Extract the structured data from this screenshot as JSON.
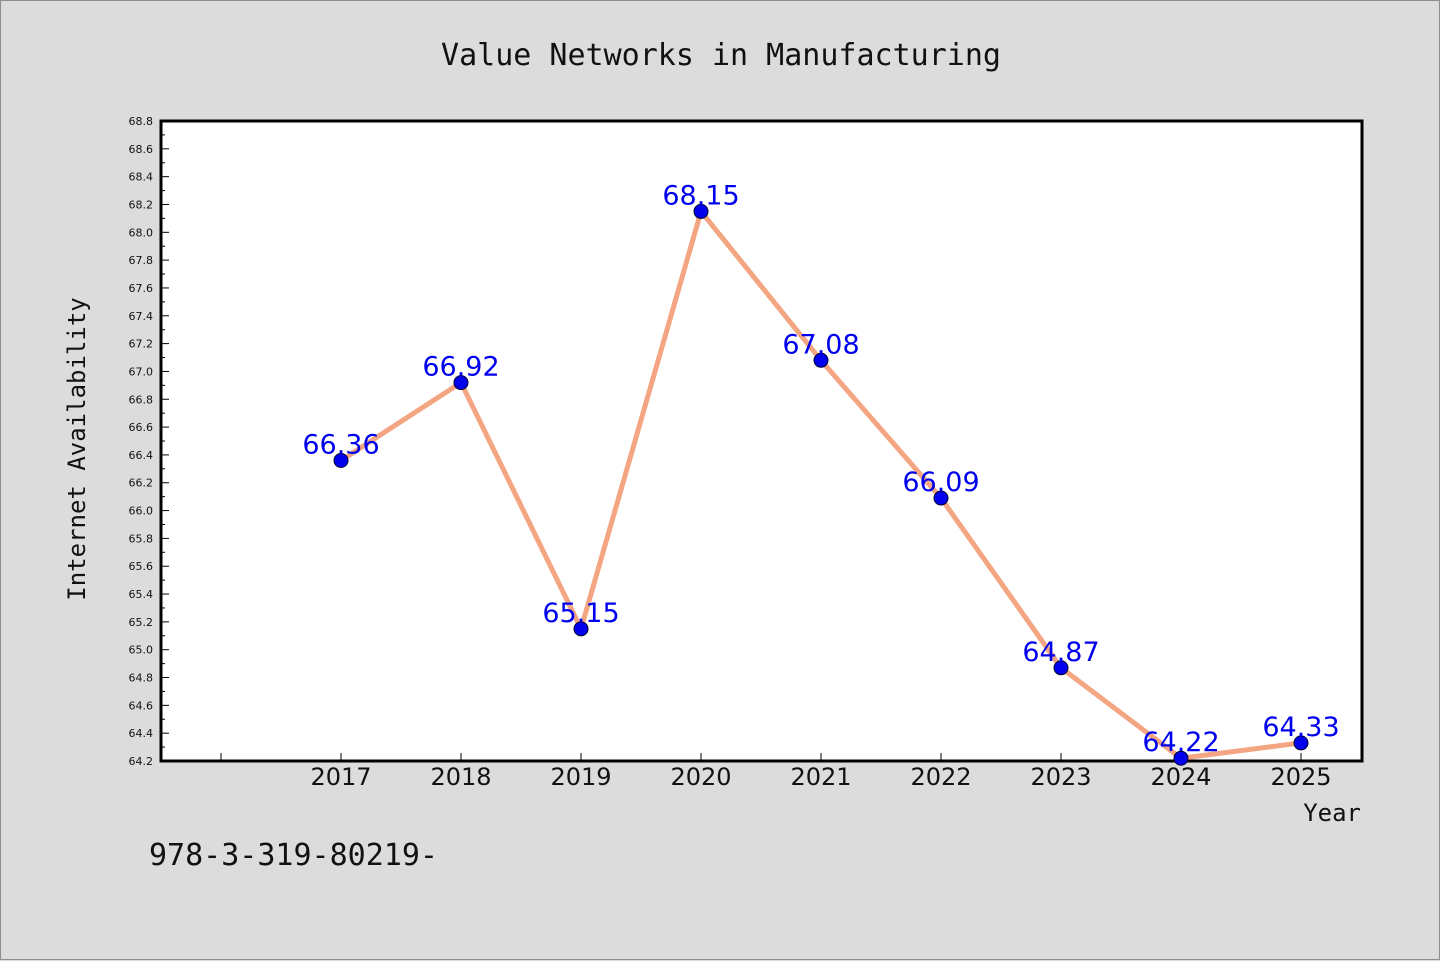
{
  "chart_data": {
    "type": "line",
    "title": "Value Networks in Manufacturing",
    "xlabel": "Year",
    "ylabel": "Internet Availability",
    "x": [
      "2017",
      "2018",
      "2019",
      "2020",
      "2021",
      "2022",
      "2023",
      "2024",
      "2025"
    ],
    "series": [
      {
        "values": [
          66.36,
          66.92,
          65.15,
          68.15,
          67.08,
          66.09,
          64.87,
          64.22,
          64.33
        ],
        "labels": [
          "66.36",
          "66.92",
          "65.15",
          "68.15",
          "67.08",
          "66.09",
          "64.87",
          "64.22",
          "64.33"
        ],
        "line_color": "#f4a582",
        "marker_color": "#0000ee"
      }
    ],
    "ylim": [
      64.2,
      68.8
    ],
    "yticks": [
      "64.2",
      "64.4",
      "64.6",
      "64.8",
      "65.0",
      "65.2",
      "65.4",
      "65.6",
      "65.8",
      "66.0",
      "66.2",
      "66.4",
      "66.6",
      "66.8",
      "67.0",
      "67.2",
      "67.4",
      "67.6",
      "67.8",
      "68.0",
      "68.2",
      "68.4",
      "68.6",
      "68.8"
    ],
    "grid": false,
    "legend": "none"
  },
  "annotation": "978-3-319-80219-"
}
